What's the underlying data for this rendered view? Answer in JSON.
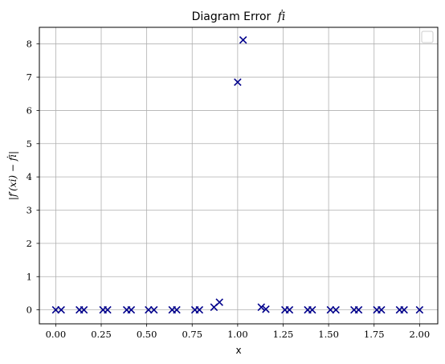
{
  "chart_data": {
    "type": "scatter",
    "title": "Diagram Error",
    "title_math": "ḟi",
    "xlabel": "x",
    "ylabel": "|f′(xi) − ḟi|",
    "xlim": [
      -0.09,
      2.1
    ],
    "ylim": [
      -0.42,
      8.5
    ],
    "x_ticks": [
      0.0,
      0.25,
      0.5,
      0.75,
      1.0,
      1.25,
      1.5,
      1.75,
      2.0
    ],
    "x_tick_labels": [
      "0.00",
      "0.25",
      "0.50",
      "0.75",
      "1.00",
      "1.25",
      "1.50",
      "1.75",
      "2.00"
    ],
    "y_ticks": [
      0,
      1,
      2,
      3,
      4,
      5,
      6,
      7,
      8
    ],
    "y_tick_labels": [
      "0",
      "1",
      "2",
      "3",
      "4",
      "5",
      "6",
      "7",
      "8"
    ],
    "grid": true,
    "legend": {
      "placement": "upper-right",
      "entries": []
    },
    "marker": "x",
    "marker_color": "#00008b",
    "series": [
      {
        "x": [
          0.0,
          0.03,
          0.13,
          0.155,
          0.26,
          0.285,
          0.39,
          0.415,
          0.51,
          0.54,
          0.64,
          0.665,
          0.765,
          0.79,
          0.87,
          0.9,
          1.0,
          1.03,
          1.13,
          1.155,
          1.26,
          1.285,
          1.385,
          1.41,
          1.51,
          1.54,
          1.64,
          1.665,
          1.765,
          1.79,
          1.89,
          1.915,
          2.0
        ],
        "y": [
          0.0,
          0.0,
          0.0,
          0.0,
          0.0,
          0.0,
          0.0,
          0.0,
          0.0,
          0.0,
          0.0,
          0.0,
          0.0,
          0.0,
          0.08,
          0.23,
          6.85,
          8.12,
          0.08,
          0.02,
          0.0,
          0.0,
          0.0,
          0.0,
          0.0,
          0.0,
          0.0,
          0.0,
          0.0,
          0.0,
          0.0,
          0.0,
          0.0
        ]
      }
    ]
  }
}
